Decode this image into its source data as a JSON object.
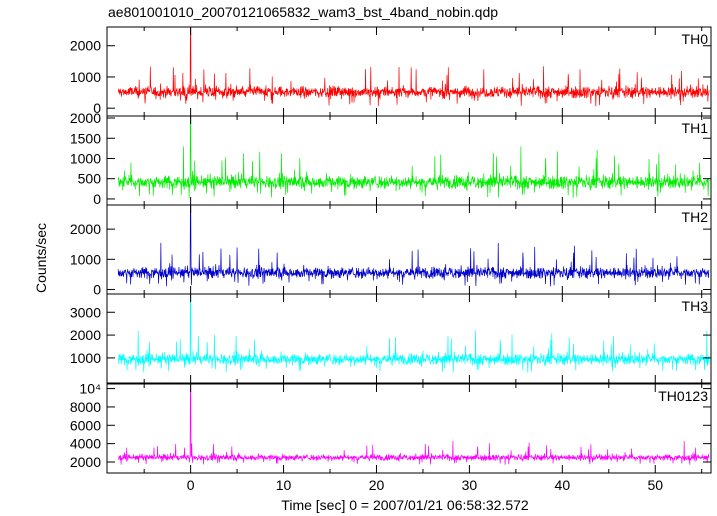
{
  "chart_data": {
    "type": "line",
    "title": "ae801001010_20070121065832_wam3_bst_4band_nobin.qdp",
    "xlabel": "Time [sec] 0 = 2007/01/21 06:58:32.572",
    "ylabel": "Counts/sec",
    "xlim": [
      -9,
      56
    ],
    "x_ticks": [
      0,
      10,
      20,
      30,
      40,
      50
    ],
    "x_tick_labels": [
      "0",
      "10",
      "20",
      "30",
      "40",
      "50"
    ],
    "grid": false,
    "panels": [
      {
        "name": "TH0",
        "color": "#ff0000",
        "ylim": [
          -250,
          2600
        ],
        "y_ticks": [
          0,
          1000,
          2000
        ],
        "y_tick_labels": [
          "0",
          "1000",
          "2000"
        ],
        "base": 520,
        "spread": 230,
        "max_spike": 1350,
        "spike_at_zero": 2600
      },
      {
        "name": "TH1",
        "color": "#00ee00",
        "ylim": [
          -150,
          2050
        ],
        "y_ticks": [
          0,
          500,
          1000,
          1500,
          2000
        ],
        "y_tick_labels": [
          "0",
          "500",
          "1000",
          "1500",
          "2000"
        ],
        "base": 420,
        "spread": 200,
        "max_spike": 1300,
        "spike_at_zero": 2050
      },
      {
        "name": "TH2",
        "color": "#0000cc",
        "ylim": [
          -150,
          2800
        ],
        "y_ticks": [
          0,
          1000,
          2000
        ],
        "y_tick_labels": [
          "0",
          "1000",
          "2000"
        ],
        "base": 560,
        "spread": 230,
        "max_spike": 1550,
        "spike_at_zero": 2800
      },
      {
        "name": "TH3",
        "color": "#00ffff",
        "ylim": [
          -100,
          3800
        ],
        "y_ticks": [
          1000,
          2000,
          3000
        ],
        "y_tick_labels": [
          "1000",
          "2000",
          "3000"
        ],
        "base": 950,
        "spread": 300,
        "max_spike": 2200,
        "spike_at_zero": 3800
      },
      {
        "name": "TH0123",
        "color": "#ff00ff",
        "ylim": [
          800,
          10500
        ],
        "y_ticks": [
          2000,
          4000,
          6000,
          8000,
          10000
        ],
        "y_tick_labels": [
          "2000",
          "4000",
          "6000",
          "8000",
          "10⁴"
        ],
        "base": 2500,
        "spread": 400,
        "max_spike": 4300,
        "spike_at_zero": 10500
      }
    ]
  }
}
